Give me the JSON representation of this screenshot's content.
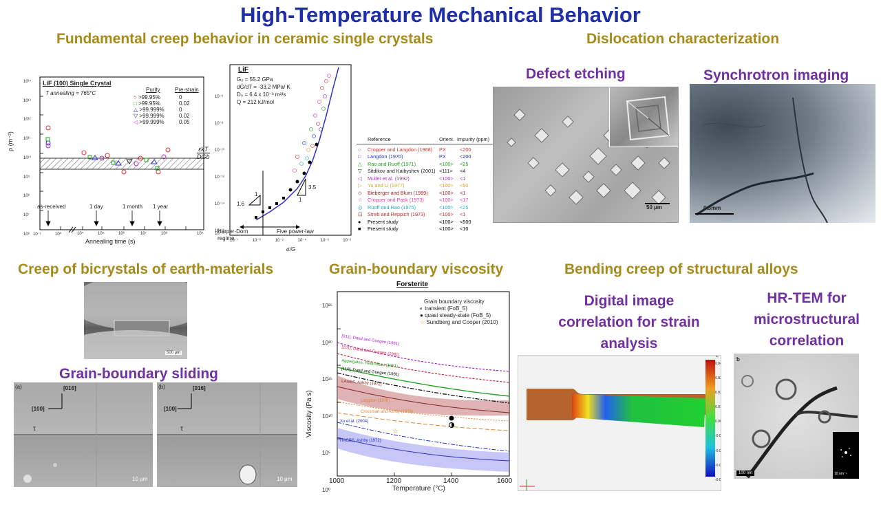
{
  "title": "High-Temperature Mechanical Behavior",
  "sections": {
    "creep_crystals": "Fundamental creep behavior in ceramic single crystals",
    "dislocation": "Dislocation characterization",
    "defect_etching": "Defect etching",
    "synchrotron": "Synchrotron imaging",
    "bicrystals": "Creep of bicrystals of earth-materials",
    "gb_sliding": "Grain-boundary sliding",
    "gb_viscosity": "Grain-boundary viscosity",
    "bending_creep": "Bending creep of structural alloys",
    "dic": "Digital image correlation for strain analysis",
    "hrtem": "HR-TEM for microstructural correlation"
  },
  "fig1": {
    "panel_title": "LiF (100) Single Crystal",
    "anneal_temp": "T annealing = 765°C",
    "col_purity": "Purity",
    "col_prestrain": "Pre-strain",
    "legend": [
      {
        "purity": ">99.95%",
        "strain": "0",
        "color": "#e03030"
      },
      {
        "purity": ">99.95%",
        "strain": "0.02",
        "color": "#20a020"
      },
      {
        "purity": ">99.999%",
        "strain": "0",
        "color": "#2030e0"
      },
      {
        "purity": ">99.999%",
        "strain": "0.02",
        "color": "#222222"
      },
      {
        "purity": ">99.999%",
        "strain": "0.05",
        "color": "#b030c0"
      }
    ],
    "ylabel": "ρ (m⁻²)",
    "xlabel": "Annealing time (s)",
    "yticks": [
      "10¹⁴",
      "10¹³",
      "10¹²",
      "10¹¹",
      "10¹⁰",
      "10⁹",
      "10⁸",
      "10⁷",
      "10⁶"
    ],
    "xticks": [
      "10⁻¹",
      "10⁰",
      "10¹",
      "10⁴",
      "10⁵",
      "10⁶",
      "10⁷",
      "10⁸",
      "10⁹"
    ],
    "marks": [
      "as-received",
      "1 day",
      "1 month",
      "1 year"
    ]
  },
  "fig2": {
    "panel_title": "LiF",
    "params": [
      "G₀ = 55.2 GPa",
      "dG/dT = -33.2 MPa/ K",
      "D₀ = 6.4 x 10⁻³ m²/s",
      "Q = 212 kJ/mol"
    ],
    "ylabel_num": "ε̇kT",
    "ylabel_den": "DGb",
    "xlabel": "σ/G",
    "yticks": [
      "10⁻⁶",
      "10⁻⁸",
      "10⁻¹⁰",
      "10⁻¹²",
      "10⁻¹⁴",
      "10⁻¹⁶",
      "10⁻¹⁸"
    ],
    "xticks": [
      "10⁻⁷",
      "10⁻⁶",
      "10⁻⁵",
      "10⁻⁴",
      "10⁻³",
      "10⁻²"
    ],
    "slope_low": "1.6",
    "slope_high": "3.5",
    "slope_unit": "1",
    "regime_low": "Harper-Dorn regime",
    "regime_high": "Five power-law"
  },
  "refs": {
    "headers": [
      "Reference",
      "Orient.",
      "Impurity (ppm)"
    ],
    "rows": [
      {
        "name": "Cropper and Langdon (1968)",
        "orient": "PX",
        "imp": "<200",
        "color": "#e03030",
        "sym": "○"
      },
      {
        "name": "Langdon (1970)",
        "orient": "PX",
        "imp": "<200",
        "color": "#2030e0",
        "sym": "□"
      },
      {
        "name": "Rao and Ruoff (1971)",
        "orient": "<100>",
        "imp": "<25",
        "color": "#20a020",
        "sym": "△"
      },
      {
        "name": "Sitdikov and Kaibyshev (2001)",
        "orient": "<111>",
        "imp": "<4",
        "color": "#222222",
        "sym": "▽"
      },
      {
        "name": "Muller et al. (1992)",
        "orient": "<100>",
        "imp": "<1",
        "color": "#b030c0",
        "sym": "◁"
      },
      {
        "name": "Yu and Li (1977)",
        "orient": "<100>",
        "imp": "<50",
        "color": "#e0a020",
        "sym": "▷"
      },
      {
        "name": "Bieberger and Blum (1989)",
        "orient": "<100>",
        "imp": "<1",
        "color": "#a02020",
        "sym": "◇"
      },
      {
        "name": "Cropper and Pask (1973)",
        "orient": "<100>",
        "imp": "<17",
        "color": "#e040a0",
        "sym": "☆"
      },
      {
        "name": "Ruoff and Rao (1975)",
        "orient": "<100>",
        "imp": "<25",
        "color": "#20b0c0",
        "sym": "◎"
      },
      {
        "name": "Streb and Reppich (1973)",
        "orient": "<100>",
        "imp": "<1",
        "color": "#c03030",
        "sym": "⊡"
      },
      {
        "name": "Present study",
        "orient": "<100>",
        "imp": "<500",
        "color": "#000000",
        "sym": "●"
      },
      {
        "name": "Present study",
        "orient": "<100>",
        "imp": "<10",
        "color": "#000000",
        "sym": "■"
      }
    ]
  },
  "etch": {
    "scale": "50 µm"
  },
  "sync": {
    "scale": "0.5mm"
  },
  "bicrystal": {
    "scale": "500 µm"
  },
  "gbs": {
    "a_label": "(a)",
    "b_label": "(b)",
    "dir1": "[016]",
    "dir2": "[100]",
    "tau": "τ",
    "scale": "10 µm"
  },
  "viscosity": {
    "title": "Forsterite",
    "ylabel": "Viscosity (Pa s)",
    "xlabel": "Temperature (°C)",
    "xticks": [
      "1000",
      "1200",
      "1400",
      "1600"
    ],
    "yticks": [
      "10²⁵",
      "10²⁰",
      "10¹⁵",
      "10¹⁰",
      "10⁵",
      "10⁰"
    ],
    "legend_title": "Grain boundary viscosity",
    "legend": [
      "transient (FoB_5)",
      "quasi steady-state (FoB_5)",
      "Sundberg and Cooper (2010)"
    ],
    "curves": [
      "[011], Dand and Guegen (1981)",
      "[101], Dand and Guegen (1981)",
      "Aggregates, Relandeau (1981)",
      "[110], Dand and Guegen (1981)",
      "LAGBS, Ashby (1972)",
      "Langdon (1970)",
      "Crossman and Ashby (1975)",
      "Xu et al. (2004)",
      "HAGBS, Ashby (1972)"
    ]
  },
  "dic_colorbar": [
    "0.04",
    "0.03",
    "0.02",
    "0.01",
    "0.00",
    "-0.01",
    "-0.02",
    "-0.03",
    "-0.04"
  ],
  "dic_label": "εₓ",
  "tem": {
    "panel": "b",
    "scale": "100 nm",
    "inset_scale": "10 nm⁻¹"
  }
}
